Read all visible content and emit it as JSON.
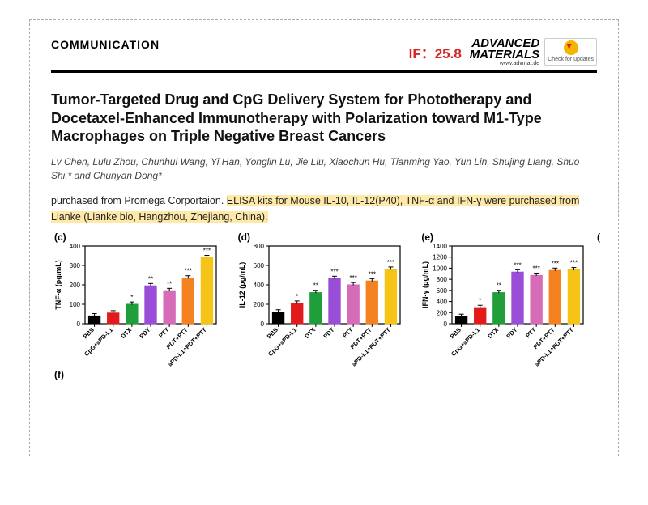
{
  "header": {
    "section": "COMMUNICATION",
    "impact_factor": "IF：25.8",
    "journal_top": "ADVANCED",
    "journal_bottom": "MATERIALS",
    "journal_url": "www.advmat.de",
    "check_updates": "Check for\nupdates"
  },
  "title": "Tumor-Targeted Drug and CpG Delivery System for Phototherapy and Docetaxel-Enhanced Immunotherapy with Polarization toward M1-Type Macrophages on Triple Negative Breast Cancers",
  "authors": "Lv Chen, Lulu Zhou, Chunhui Wang, Yi Han, Yonglin Lu, Jie Liu, Xiaochun Hu, Tianming Yao, Yun Lin, Shujing Liang, Shuo Shi,* and Chunyan Dong*",
  "highlight_pre": "purchased from Promega Corportaion. ",
  "highlight_main": "ELISA kits for Mouse IL-10, IL-12(P40), TNF-α and IFN-γ were purchased from Lianke (Lianke bio, Hangzhou, Zhejiang, China).",
  "panels": {
    "f_label": "(f)",
    "trailing_paren": "(",
    "categories": [
      "PBS",
      "CpG+aPD-L1",
      "DTX",
      "PDT",
      "PTT",
      "PDT+PTT",
      "aPD-L1+PDT+PTT"
    ],
    "bar_colors": [
      "#000000",
      "#e31a1c",
      "#1f9e3a",
      "#9a4ed8",
      "#d66bb7",
      "#f58220",
      "#f6c417"
    ],
    "c": {
      "label": "(c)",
      "ylabel": "TNF-α (pg/mL)",
      "ymax": 400,
      "ytick_step": 100,
      "values": [
        40,
        55,
        100,
        195,
        170,
        235,
        340
      ],
      "sig": [
        "",
        "",
        "*",
        "**",
        "**",
        "***",
        "***"
      ]
    },
    "d": {
      "label": "(d)",
      "ylabel": "IL-12 (pg/mL)",
      "ymax": 800,
      "ytick_step": 200,
      "values": [
        120,
        210,
        320,
        465,
        400,
        440,
        560
      ],
      "sig": [
        "",
        "*",
        "**",
        "***",
        "***",
        "***",
        "***"
      ]
    },
    "e": {
      "label": "(e)",
      "ylabel": "IFN-γ (pg/mL)",
      "ymax": 1400,
      "ytick_step": 200,
      "values": [
        130,
        290,
        560,
        930,
        870,
        960,
        970
      ],
      "sig": [
        "",
        "*",
        "**",
        "***",
        "***",
        "***",
        "***"
      ]
    }
  }
}
